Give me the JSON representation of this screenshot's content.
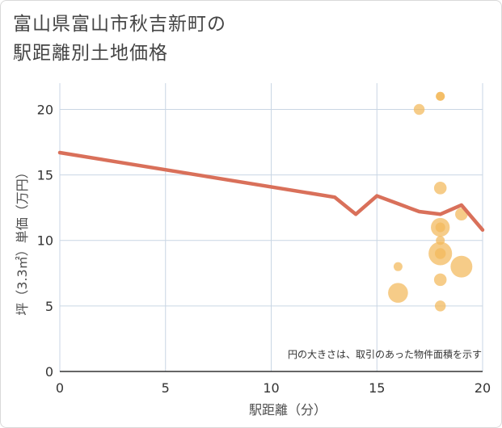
{
  "title_lines": [
    "富山県富山市秋吉新町の",
    "駅距離別土地価格"
  ],
  "colors": {
    "line": "#d9705a",
    "bubble": "#f3b85a",
    "grid": "#c9d6e4",
    "axis": "#333333"
  },
  "chart_data": {
    "type": "scatter",
    "xlabel": "駅距離（分）",
    "ylabel": "坪（3.3㎡）単価（万円）",
    "xlim": [
      0,
      20
    ],
    "ylim": [
      0,
      22
    ],
    "xticks": [
      0,
      5,
      10,
      15,
      20
    ],
    "yticks": [
      0,
      5,
      10,
      15,
      20
    ],
    "grid": true,
    "annotation": "円の大きさは、取引のあった物件面積を示す",
    "series": [
      {
        "type": "bubble",
        "points": [
          {
            "x": 16,
            "y": 8,
            "size": 1
          },
          {
            "x": 16,
            "y": 6,
            "size": 5
          },
          {
            "x": 17,
            "y": 20,
            "size": 1.5
          },
          {
            "x": 18,
            "y": 21,
            "size": 1
          },
          {
            "x": 18,
            "y": 21,
            "size": 1
          },
          {
            "x": 18,
            "y": 14,
            "size": 2
          },
          {
            "x": 18,
            "y": 11,
            "size": 4.5
          },
          {
            "x": 18,
            "y": 11,
            "size": 1.2
          },
          {
            "x": 18,
            "y": 10,
            "size": 1
          },
          {
            "x": 18,
            "y": 9,
            "size": 7
          },
          {
            "x": 18,
            "y": 9,
            "size": 1.5
          },
          {
            "x": 18,
            "y": 7,
            "size": 2
          },
          {
            "x": 18,
            "y": 5,
            "size": 1.5
          },
          {
            "x": 19,
            "y": 12,
            "size": 2
          },
          {
            "x": 19,
            "y": 8,
            "size": 6
          }
        ]
      },
      {
        "type": "line",
        "x": [
          0,
          13,
          14,
          15,
          16,
          17,
          18,
          19,
          20
        ],
        "y": [
          16.7,
          13.3,
          12.0,
          13.4,
          12.8,
          12.2,
          12.0,
          12.7,
          10.8
        ]
      }
    ]
  }
}
